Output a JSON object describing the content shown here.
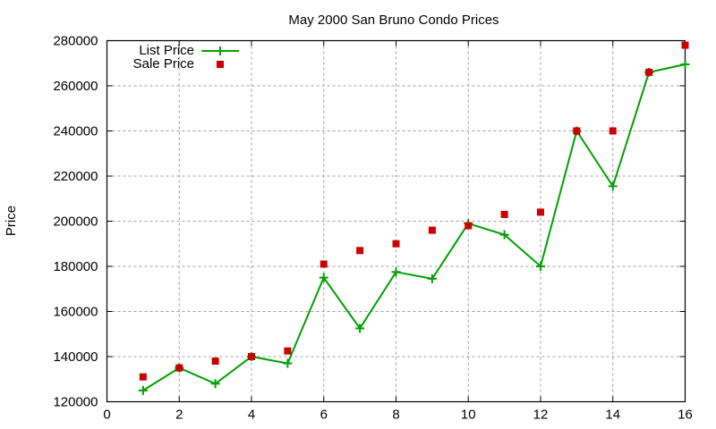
{
  "chart_data": {
    "type": "line",
    "title": "May 2000 San Bruno Condo Prices",
    "xlabel": "",
    "ylabel": "Price",
    "xlim": [
      0,
      16
    ],
    "ylim": [
      120000,
      280000
    ],
    "xticks": [
      0,
      2,
      4,
      6,
      8,
      10,
      12,
      14,
      16
    ],
    "yticks": [
      120000,
      140000,
      160000,
      180000,
      200000,
      220000,
      240000,
      260000,
      280000
    ],
    "grid": true,
    "legend_position": "top-left",
    "x": [
      1,
      2,
      3,
      4,
      5,
      6,
      7,
      8,
      9,
      10,
      11,
      12,
      13,
      14,
      15,
      16
    ],
    "series": [
      {
        "name": "List Price",
        "style": "linespoints",
        "marker": "plus",
        "color": "#00a000",
        "values": [
          125000,
          135000,
          128000,
          140000,
          137000,
          175000,
          152500,
          177500,
          174500,
          199000,
          194000,
          180000,
          240000,
          215500,
          266000,
          269500
        ]
      },
      {
        "name": "Sale Price",
        "style": "points",
        "marker": "square",
        "color": "#cc0000",
        "values": [
          131000,
          135000,
          138000,
          140000,
          142500,
          181000,
          187000,
          190000,
          196000,
          198000,
          203000,
          204000,
          240000,
          240000,
          266000,
          278000
        ]
      }
    ]
  }
}
